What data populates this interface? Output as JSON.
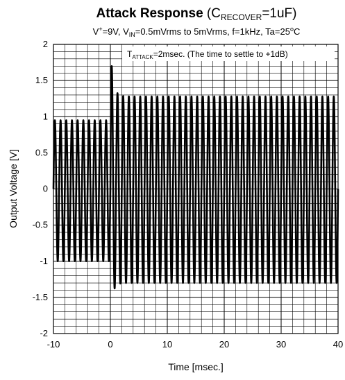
{
  "chart_data": {
    "type": "line",
    "title": {
      "bold": "Attack Response",
      "pre": " (C",
      "sub": "RECOVER",
      "post": "=1uF)"
    },
    "subtitle": {
      "p1": "V",
      "sup1": "+",
      "p2": "=9V, V",
      "sub1": "IN",
      "p3": "=0.5mVrms to 5mVrms, f=1kHz, Ta=25",
      "sup2": "o",
      "p4": "C"
    },
    "annotation": {
      "p1": "T",
      "sub": "ATTACK",
      "p2": "=2msec. (The time to settle to +1dB)"
    },
    "xlabel": "Time [msec.]",
    "ylabel": "Output Voltage [V]",
    "xlim": [
      -10,
      40
    ],
    "ylim": [
      -2,
      2
    ],
    "xticks": [
      "-10",
      "0",
      "10",
      "20",
      "30",
      "40"
    ],
    "yticks": [
      "2",
      "1.5",
      "1",
      "0.5",
      "0",
      "-0.5",
      "-1",
      "-1.5",
      "-2"
    ],
    "grid": true,
    "waveform": {
      "frequency_khz": 1,
      "before_step": {
        "x_range": [
          -10,
          0
        ],
        "upper": 0.95,
        "lower": -1.0
      },
      "spike": {
        "x": 0,
        "peak": 2.0,
        "trough": -1.7
      },
      "settled": {
        "x_range": [
          2,
          40
        ],
        "upper": 1.28,
        "lower": -1.3
      }
    }
  }
}
